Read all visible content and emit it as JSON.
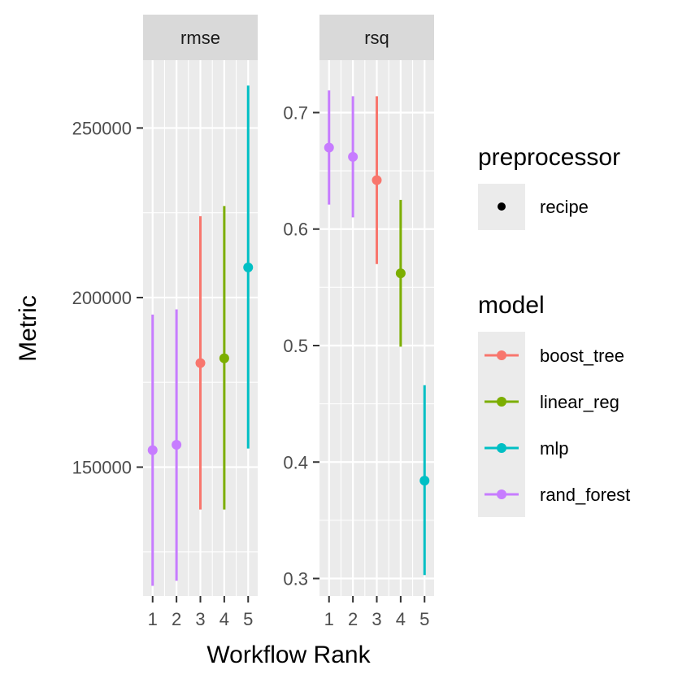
{
  "chart_data": {
    "type": "scatter",
    "xlabel": "Workflow Rank",
    "ylabel": "Metric",
    "x_ticks": [
      "1",
      "2",
      "3",
      "4",
      "5"
    ],
    "grid": true,
    "facets": [
      {
        "name": "rmse",
        "ylim": [
          112000,
          270000
        ],
        "y_ticks": [
          "150000",
          "200000",
          "250000"
        ],
        "points": [
          {
            "rank": 1,
            "model": "rand_forest",
            "mean": 155000,
            "lower": 115000,
            "upper": 195000
          },
          {
            "rank": 2,
            "model": "rand_forest",
            "mean": 156600,
            "lower": 116500,
            "upper": 196500
          },
          {
            "rank": 3,
            "model": "boost_tree",
            "mean": 180700,
            "lower": 137500,
            "upper": 224000
          },
          {
            "rank": 4,
            "model": "linear_reg",
            "mean": 182100,
            "lower": 137500,
            "upper": 227000
          },
          {
            "rank": 5,
            "model": "mlp",
            "mean": 208900,
            "lower": 155500,
            "upper": 262500
          }
        ]
      },
      {
        "name": "rsq",
        "ylim": [
          0.285,
          0.745
        ],
        "y_ticks": [
          "0.3",
          "0.4",
          "0.5",
          "0.6",
          "0.7"
        ],
        "points": [
          {
            "rank": 1,
            "model": "rand_forest",
            "mean": 0.67,
            "lower": 0.621,
            "upper": 0.719
          },
          {
            "rank": 2,
            "model": "rand_forest",
            "mean": 0.662,
            "lower": 0.61,
            "upper": 0.714
          },
          {
            "rank": 3,
            "model": "boost_tree",
            "mean": 0.642,
            "lower": 0.57,
            "upper": 0.714
          },
          {
            "rank": 4,
            "model": "linear_reg",
            "mean": 0.562,
            "lower": 0.499,
            "upper": 0.625
          },
          {
            "rank": 5,
            "model": "mlp",
            "mean": 0.384,
            "lower": 0.303,
            "upper": 0.466
          }
        ]
      }
    ],
    "legend": {
      "placement": "right",
      "preprocessor": {
        "title": "preprocessor",
        "items": [
          {
            "label": "recipe",
            "color": "#000000"
          }
        ]
      },
      "model": {
        "title": "model",
        "items": [
          {
            "label": "boost_tree",
            "color": "#F8766D"
          },
          {
            "label": "linear_reg",
            "color": "#7CAE00"
          },
          {
            "label": "mlp",
            "color": "#00BFC4"
          },
          {
            "label": "rand_forest",
            "color": "#C77CFF"
          }
        ]
      }
    },
    "colors": {
      "panel_bg": "#EBEBEB",
      "strip_bg": "#D9D9D9",
      "grid": "#FFFFFF",
      "boost_tree": "#F8766D",
      "linear_reg": "#7CAE00",
      "mlp": "#00BFC4",
      "rand_forest": "#C77CFF"
    }
  }
}
